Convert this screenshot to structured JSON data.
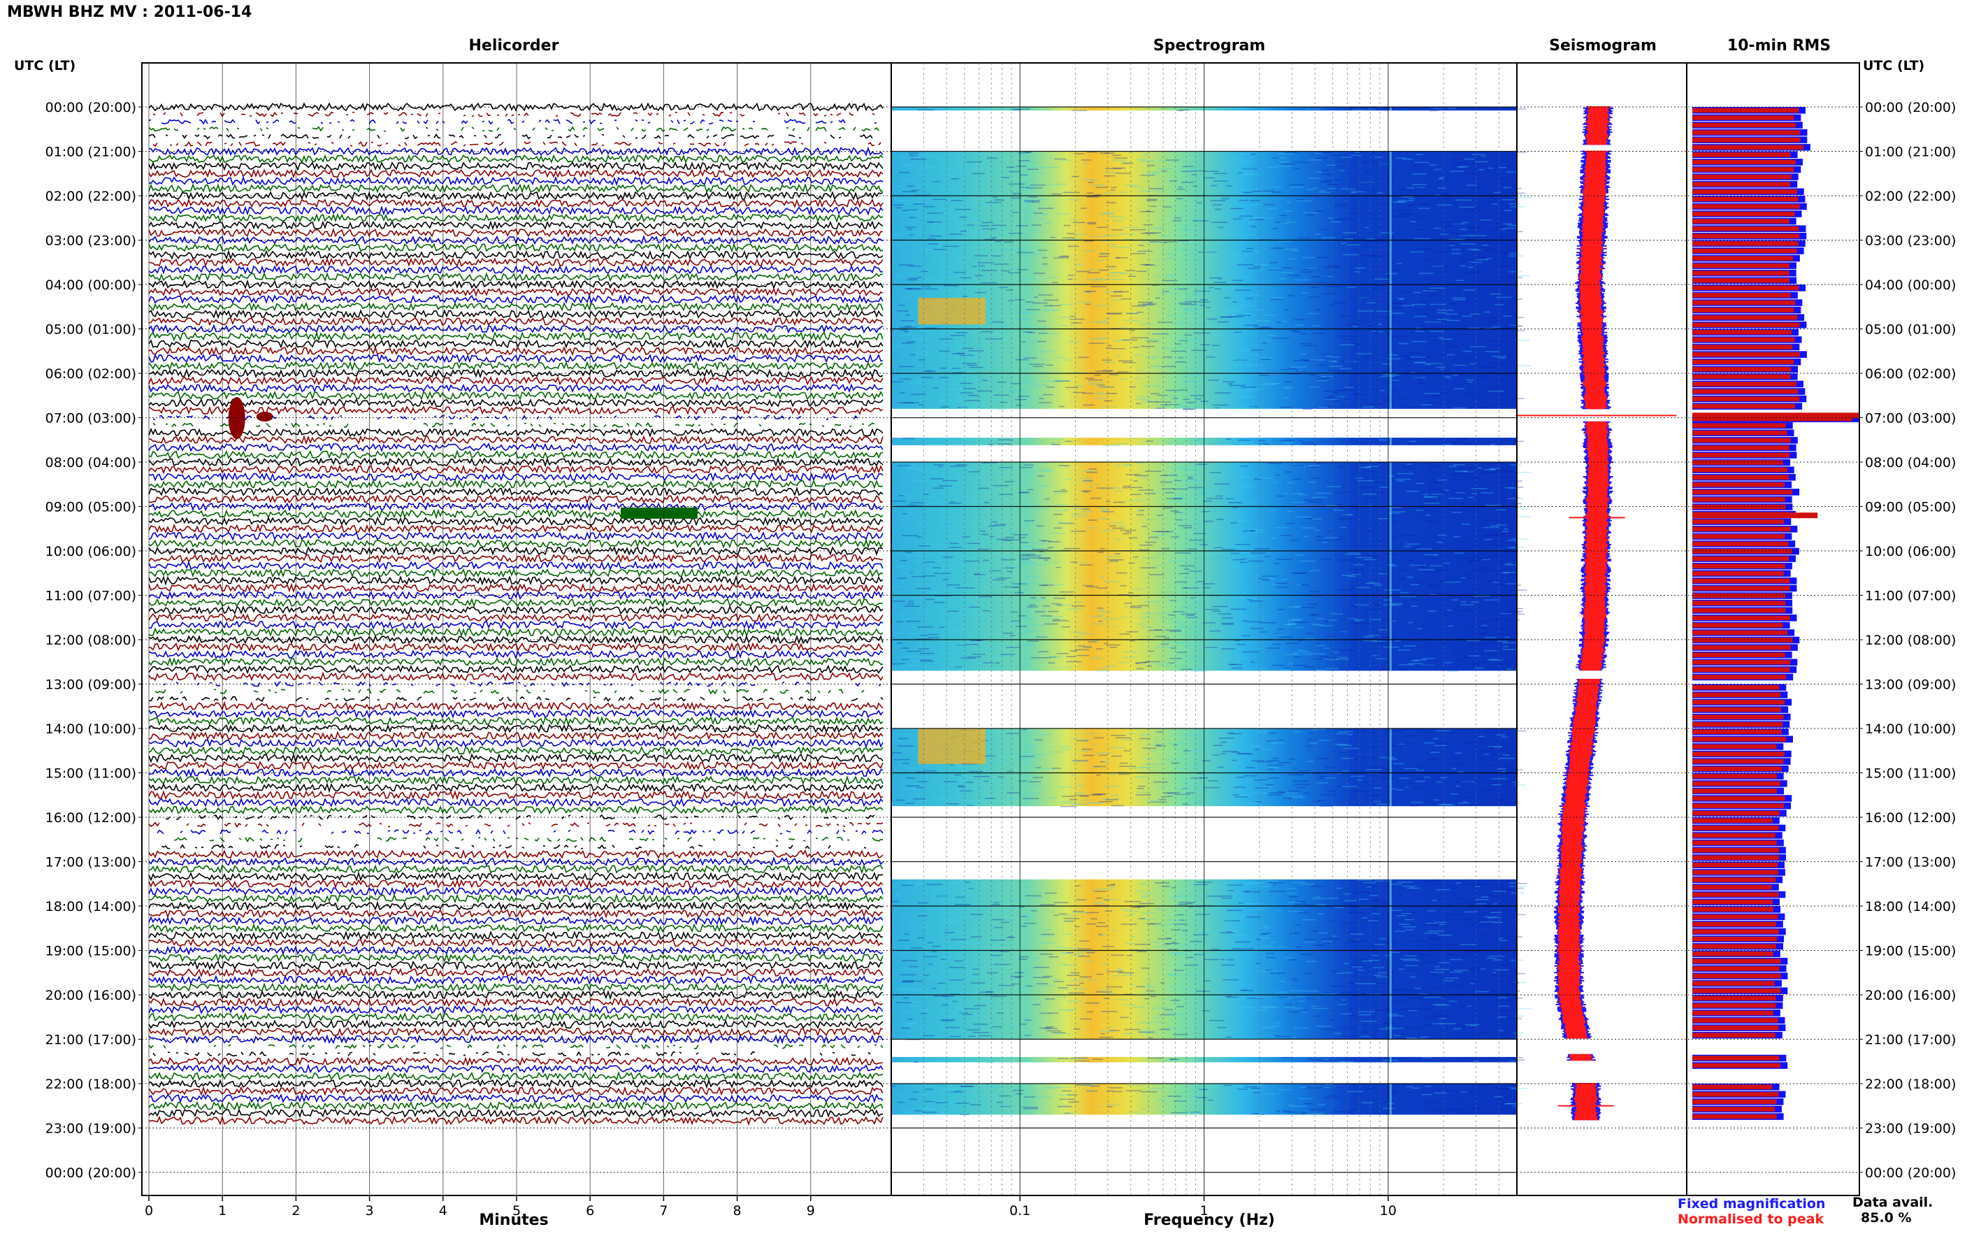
{
  "header": {
    "title": "MBWH BHZ MV : 2011-06-14"
  },
  "colors": {
    "trace_colors": [
      "#000000",
      "#8b0000",
      "#0000cc",
      "#006400"
    ],
    "fixed_magnification": "#1a1aff",
    "normalised_to_peak": "#ff1a1a",
    "rms_fill": "#d01010",
    "rms_edge": "#1010ff"
  },
  "chart_data": [
    {
      "type": "line",
      "panel": "helicorder",
      "title": "Helicorder",
      "xlabel": "Minutes",
      "xlim": [
        0,
        10
      ],
      "x_ticks": [
        "0",
        "1",
        "2",
        "3",
        "4",
        "5",
        "6",
        "7",
        "8",
        "9"
      ],
      "left_axis_title": "UTC (LT)",
      "right_axis_title": "UTC (LT)",
      "hour_labels": [
        "00:00 (20:00)",
        "01:00 (21:00)",
        "02:00 (22:00)",
        "03:00 (23:00)",
        "04:00 (00:00)",
        "05:00 (01:00)",
        "06:00 (02:00)",
        "07:00 (03:00)",
        "08:00 (04:00)",
        "09:00 (05:00)",
        "10:00 (06:00)",
        "11:00 (07:00)",
        "12:00 (08:00)",
        "13:00 (09:00)",
        "14:00 (10:00)",
        "15:00 (11:00)",
        "16:00 (12:00)",
        "17:00 (13:00)",
        "18:00 (14:00)",
        "19:00 (15:00)",
        "20:00 (16:00)",
        "21:00 (17:00)",
        "22:00 (18:00)",
        "23:00 (19:00)",
        "00:00 (20:00)"
      ],
      "rows_per_hour": 6,
      "data_rows_hours": [
        0,
        22.83
      ],
      "gaps_hours": [
        [
          0.1,
          0.9
        ],
        [
          6.85,
          7.25
        ],
        [
          12.9,
          13.4
        ],
        [
          15.95,
          16.7
        ],
        [
          21.1,
          21.5
        ]
      ],
      "events": [
        {
          "hour": 6.85,
          "minute": 1.1,
          "note": "large burst"
        },
        {
          "hour": 9.15,
          "minute": 6.7,
          "note": "green burst"
        }
      ]
    },
    {
      "type": "heatmap",
      "panel": "spectrogram",
      "title": "Spectrogram",
      "xlabel": "Frequency (Hz)",
      "x_scale": "log",
      "xlim": [
        0.02,
        50
      ],
      "x_tick_labels": [
        "0.1",
        "1",
        "10"
      ],
      "x_tick_values": [
        0.1,
        1,
        10
      ],
      "rows": [
        {
          "from": 0.0,
          "to": 0.08
        },
        {
          "from": 1.0,
          "to": 6.8
        },
        {
          "from": 7.45,
          "to": 7.62
        },
        {
          "from": 8.0,
          "to": 12.7
        },
        {
          "from": 14.0,
          "to": 15.75
        },
        {
          "from": 17.4,
          "to": 21.0
        },
        {
          "from": 21.4,
          "to": 21.52
        },
        {
          "from": 22.0,
          "to": 22.7
        }
      ],
      "energy_peak_hz": [
        0.25,
        0.45
      ],
      "microseism_hz": [
        0.03,
        0.07
      ]
    },
    {
      "type": "line",
      "panel": "seismogram",
      "title": "Seismogram",
      "series": [
        {
          "name": "Fixed magnification",
          "color": "#1a1aff"
        },
        {
          "name": "Normalised to peak",
          "color": "#ff1a1a"
        }
      ],
      "drift": [
        {
          "hour": 0,
          "offset": 0.0
        },
        {
          "hour": 4,
          "offset": -0.1
        },
        {
          "hour": 8,
          "offset": 0.0
        },
        {
          "hour": 12,
          "offset": -0.05
        },
        {
          "hour": 16,
          "offset": -0.3
        },
        {
          "hour": 18,
          "offset": -0.35
        },
        {
          "hour": 20,
          "offset": -0.35
        },
        {
          "hour": 22,
          "offset": -0.15
        }
      ],
      "spikes_hours": [
        6.95,
        9.25,
        22.5
      ]
    },
    {
      "type": "bar",
      "panel": "rms",
      "title": "10-min RMS",
      "orientation": "horizontal",
      "interval_minutes": 10,
      "bars": [
        {
          "from": 0.0,
          "to": 0.85,
          "value": 0.68
        },
        {
          "from": 1.0,
          "to": 6.8,
          "value": 0.66
        },
        {
          "from": 6.95,
          "to": 7.0,
          "value": 1.0
        },
        {
          "from": 7.1,
          "to": 12.9,
          "value": 0.62
        },
        {
          "from": 13.0,
          "to": 15.95,
          "value": 0.58
        },
        {
          "from": 16.0,
          "to": 21.0,
          "value": 0.55
        },
        {
          "from": 21.35,
          "to": 21.55,
          "value": 0.55
        },
        {
          "from": 22.0,
          "to": 22.83,
          "value": 0.54
        }
      ],
      "spike_bars": [
        {
          "hour": 6.95,
          "value": 1.0
        },
        {
          "hour": 9.2,
          "value": 0.75
        }
      ],
      "data_availability_label": "Data avail.",
      "data_availability": "85.0 %"
    }
  ],
  "legend": {
    "fixed_magnification": "Fixed magnification",
    "normalised_to_peak": "Normalised to peak"
  }
}
